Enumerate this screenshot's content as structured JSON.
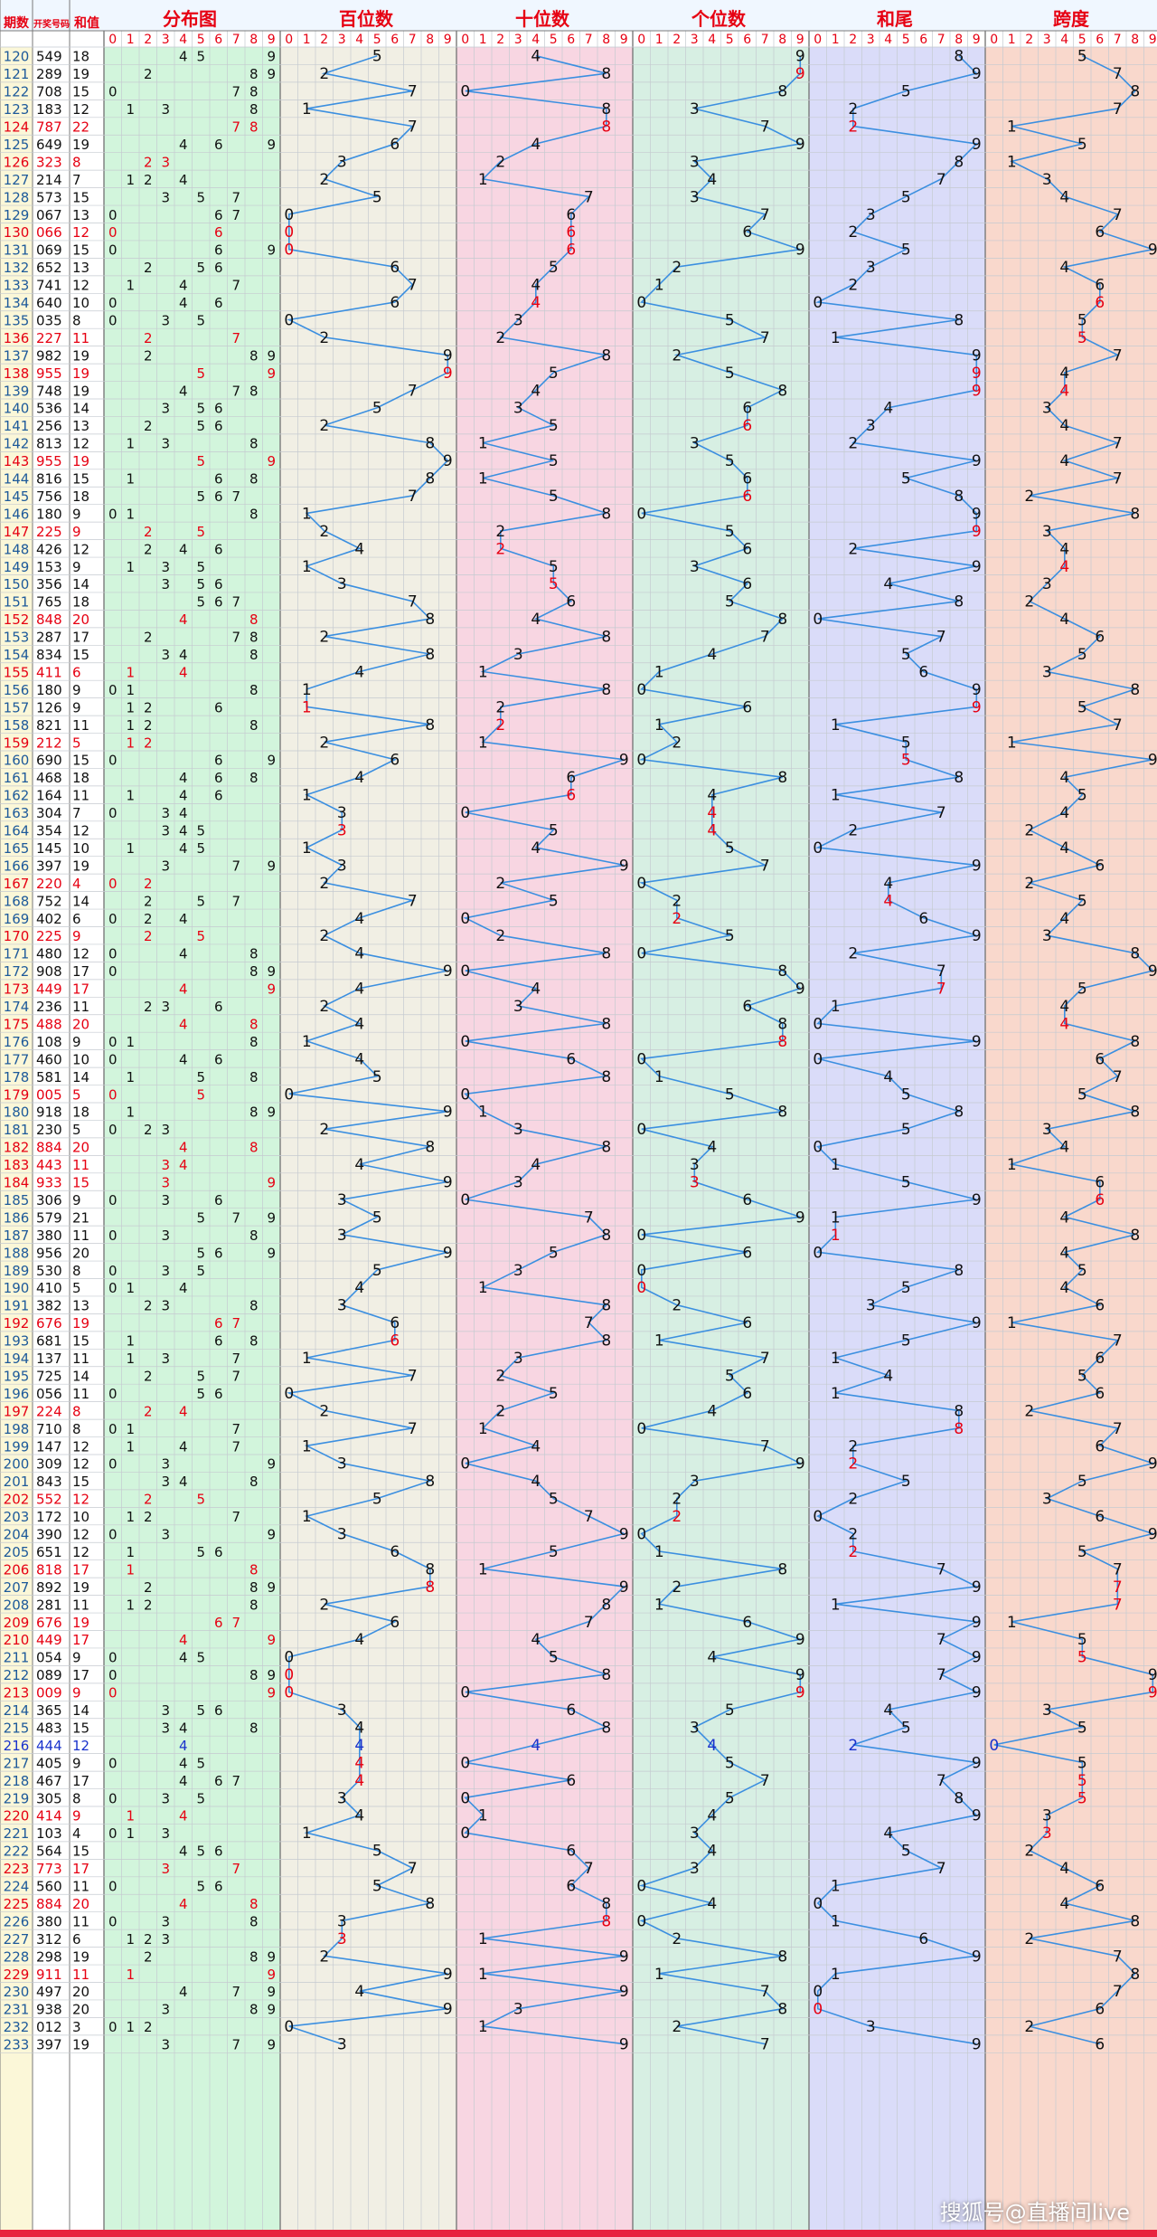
{
  "header": {
    "period": "期数",
    "draw": "开奖号码",
    "sum": "和值",
    "sections": [
      "分布图",
      "百位数",
      "十位数",
      "个位数",
      "和尾",
      "跨度"
    ],
    "digits": [
      "0",
      "1",
      "2",
      "3",
      "4",
      "5",
      "6",
      "7",
      "8",
      "9"
    ]
  },
  "colors": {
    "header_bg": "#f0f7ff",
    "header_text": "#e60012",
    "normal_text": "#111111",
    "repeat_text": "#e60012",
    "triple_text": "#1a33cc",
    "period_text": "#1e5a9a",
    "line": "#3b8fe0",
    "grid": "#c5cad0",
    "bottom_bar": "#e8223e",
    "section_bgs": [
      "#d2f5dc",
      "#f1efe4",
      "#f8d6e2",
      "#d7efe3",
      "#dadcf9",
      "#f9d8cc"
    ]
  },
  "chart_data": {
    "type": "table",
    "title": "",
    "columns": [
      "期数",
      "开奖号码",
      "和值",
      "分布图",
      "百位数",
      "十位数",
      "个位数",
      "和尾",
      "跨度"
    ],
    "draws": [
      "549",
      "289",
      "708",
      "183",
      "787",
      "649",
      "323",
      "214",
      "573",
      "067",
      "066",
      "069",
      "652",
      "741",
      "640",
      "035",
      "227",
      "982",
      "955",
      "748",
      "536",
      "256",
      "813",
      "955",
      "816",
      "756",
      "180",
      "225",
      "426",
      "153",
      "356",
      "765",
      "848",
      "287",
      "834",
      "411",
      "180",
      "126",
      "821",
      "212",
      "690",
      "468",
      "164",
      "304",
      "354",
      "145",
      "397",
      "220",
      "752",
      "402",
      "225",
      "480",
      "908",
      "449",
      "236",
      "488",
      "108",
      "460",
      "581",
      "005",
      "918",
      "230",
      "884",
      "443",
      "933",
      "306",
      "579",
      "380",
      "956",
      "530",
      "410",
      "382",
      "676",
      "681",
      "137",
      "725",
      "056",
      "224",
      "710",
      "147",
      "309",
      "843",
      "552",
      "172",
      "390",
      "651",
      "818",
      "892",
      "281",
      "676",
      "449",
      "054",
      "089",
      "009",
      "365",
      "483",
      "444",
      "405",
      "467",
      "305",
      "414",
      "103",
      "564",
      "773",
      "560",
      "884",
      "380",
      "312",
      "298",
      "911",
      "497",
      "938",
      "012",
      "397"
    ],
    "periods": [
      120,
      121,
      122,
      123,
      124,
      125,
      126,
      127,
      128,
      129,
      130,
      131,
      132,
      133,
      134,
      135,
      136,
      137,
      138,
      139,
      140,
      141,
      142,
      143,
      144,
      145,
      146,
      147,
      148,
      149,
      150,
      151,
      152,
      153,
      154,
      155,
      156,
      157,
      158,
      159,
      160,
      161,
      162,
      163,
      164,
      165,
      166,
      167,
      168,
      169,
      170,
      171,
      172,
      173,
      174,
      175,
      176,
      177,
      178,
      179,
      180,
      181,
      182,
      183,
      184,
      185,
      186,
      187,
      188,
      189,
      190,
      191,
      192,
      193,
      194,
      195,
      196,
      197,
      198,
      199,
      200,
      201,
      202,
      203,
      204,
      205,
      206,
      207,
      208,
      209,
      210,
      211,
      212,
      213,
      214,
      215,
      216,
      217,
      218,
      219,
      220,
      221,
      222,
      223,
      224,
      225,
      226,
      227,
      228,
      229,
      230,
      231,
      232,
      233
    ],
    "sums": [
      18,
      19,
      15,
      12,
      22,
      19,
      8,
      7,
      15,
      13,
      12,
      15,
      13,
      12,
      10,
      8,
      11,
      19,
      19,
      19,
      14,
      13,
      12,
      19,
      15,
      18,
      9,
      9,
      12,
      9,
      14,
      18,
      20,
      17,
      15,
      6,
      9,
      9,
      11,
      5,
      15,
      18,
      11,
      7,
      12,
      10,
      19,
      4,
      14,
      6,
      9,
      12,
      17,
      17,
      11,
      20,
      9,
      10,
      14,
      5,
      18,
      5,
      20,
      11,
      15,
      9,
      21,
      11,
      20,
      8,
      5,
      13,
      19,
      15,
      11,
      14,
      11,
      8,
      8,
      12,
      12,
      15,
      12,
      10,
      12,
      12,
      17,
      19,
      11,
      19,
      17,
      9,
      17,
      9,
      14,
      15,
      12,
      9,
      17,
      8,
      9,
      4,
      15,
      17,
      11,
      20,
      11,
      6,
      19,
      11,
      20,
      20,
      3,
      19
    ],
    "hundreds": [
      5,
      2,
      7,
      1,
      7,
      6,
      3,
      2,
      5,
      0,
      0,
      0,
      6,
      7,
      6,
      0,
      2,
      9,
      9,
      7,
      5,
      2,
      8,
      9,
      8,
      7,
      1,
      2,
      4,
      1,
      3,
      7,
      8,
      2,
      8,
      4,
      1,
      1,
      8,
      2,
      6,
      4,
      1,
      3,
      3,
      1,
      3,
      2,
      7,
      4,
      2,
      4,
      9,
      4,
      2,
      4,
      1,
      4,
      5,
      0,
      9,
      2,
      8,
      4,
      9,
      3,
      5,
      3,
      9,
      5,
      4,
      3,
      6,
      6,
      1,
      7,
      0,
      2,
      7,
      1,
      3,
      8,
      5,
      1,
      3,
      6,
      8,
      8,
      2,
      6,
      4,
      0,
      0,
      0,
      3,
      4,
      4,
      4,
      4,
      3,
      4,
      1,
      5,
      7,
      5,
      8,
      3,
      3,
      2,
      9,
      4,
      9,
      0,
      3
    ],
    "tens": [
      4,
      8,
      0,
      8,
      8,
      4,
      2,
      1,
      7,
      6,
      6,
      6,
      5,
      4,
      4,
      3,
      2,
      8,
      5,
      4,
      3,
      5,
      1,
      5,
      1,
      5,
      8,
      2,
      2,
      5,
      5,
      6,
      4,
      8,
      3,
      1,
      8,
      2,
      2,
      1,
      9,
      6,
      6,
      0,
      5,
      4,
      9,
      2,
      5,
      0,
      2,
      8,
      0,
      4,
      3,
      8,
      0,
      6,
      8,
      0,
      1,
      3,
      8,
      4,
      3,
      0,
      7,
      8,
      5,
      3,
      1,
      8,
      7,
      8,
      3,
      2,
      5,
      2,
      1,
      4,
      0,
      4,
      5,
      7,
      9,
      5,
      1,
      9,
      8,
      7,
      4,
      5,
      8,
      0,
      6,
      8,
      4,
      0,
      6,
      0,
      1,
      0,
      6,
      7,
      6,
      8,
      8,
      1,
      9,
      1,
      9,
      3,
      1,
      9
    ],
    "units": [
      9,
      9,
      8,
      3,
      7,
      9,
      3,
      4,
      3,
      7,
      6,
      9,
      2,
      1,
      0,
      5,
      7,
      2,
      5,
      8,
      6,
      6,
      3,
      5,
      6,
      6,
      0,
      5,
      6,
      3,
      6,
      5,
      8,
      7,
      4,
      1,
      0,
      6,
      1,
      2,
      0,
      8,
      4,
      4,
      4,
      5,
      7,
      0,
      2,
      2,
      5,
      0,
      8,
      9,
      6,
      8,
      8,
      0,
      1,
      5,
      8,
      0,
      4,
      3,
      3,
      6,
      9,
      0,
      6,
      0,
      0,
      2,
      6,
      1,
      7,
      5,
      6,
      4,
      0,
      7,
      9,
      3,
      2,
      2,
      0,
      1,
      8,
      2,
      1,
      6,
      9,
      4,
      9,
      9,
      5,
      3,
      4,
      5,
      7,
      5,
      4,
      3,
      4,
      3,
      0,
      4,
      0,
      2,
      8,
      1,
      7,
      8,
      2,
      7
    ],
    "sum_tails": [
      8,
      9,
      5,
      2,
      2,
      9,
      8,
      7,
      5,
      3,
      2,
      5,
      3,
      2,
      0,
      8,
      1,
      9,
      9,
      9,
      4,
      3,
      2,
      9,
      5,
      8,
      9,
      9,
      2,
      9,
      4,
      8,
      0,
      7,
      5,
      6,
      9,
      9,
      1,
      5,
      5,
      8,
      1,
      7,
      2,
      0,
      9,
      4,
      4,
      6,
      9,
      2,
      7,
      7,
      1,
      0,
      9,
      0,
      4,
      5,
      8,
      5,
      0,
      1,
      5,
      9,
      1,
      1,
      0,
      8,
      5,
      3,
      9,
      5,
      1,
      4,
      1,
      8,
      8,
      2,
      2,
      5,
      2,
      0,
      2,
      2,
      7,
      9,
      1,
      9,
      7,
      9,
      7,
      9,
      4,
      5,
      2,
      9,
      7,
      8,
      9,
      4,
      5,
      7,
      1,
      0,
      1,
      6,
      9,
      1,
      0,
      0,
      3,
      9
    ],
    "spans": [
      5,
      7,
      8,
      7,
      1,
      5,
      1,
      3,
      4,
      7,
      6,
      9,
      4,
      6,
      6,
      5,
      5,
      7,
      4,
      4,
      3,
      4,
      7,
      4,
      7,
      2,
      8,
      3,
      4,
      4,
      3,
      2,
      4,
      6,
      5,
      3,
      8,
      5,
      7,
      1,
      9,
      4,
      5,
      4,
      2,
      4,
      6,
      2,
      5,
      4,
      3,
      8,
      9,
      5,
      4,
      4,
      8,
      6,
      7,
      5,
      8,
      3,
      4,
      1,
      6,
      6,
      4,
      8,
      4,
      5,
      4,
      6,
      1,
      7,
      6,
      5,
      6,
      2,
      7,
      6,
      9,
      5,
      3,
      6,
      9,
      5,
      7,
      7,
      7,
      1,
      5,
      5,
      9,
      9,
      3,
      5,
      0,
      5,
      5,
      5,
      3,
      3,
      2,
      4,
      6,
      4,
      8,
      2,
      7,
      8,
      7,
      6,
      2,
      6
    ]
  },
  "watermark": "搜狐号@直播间live"
}
